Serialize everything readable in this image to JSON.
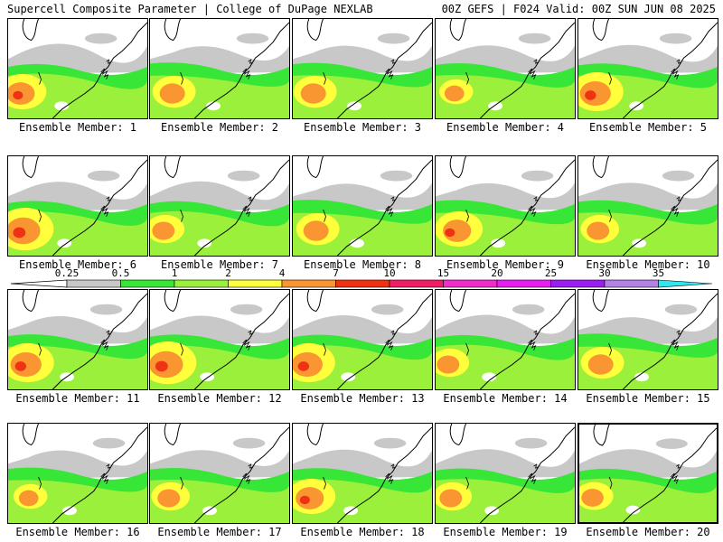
{
  "header": {
    "left": "Supercell Composite Parameter | College of DuPage NEXLAB",
    "right": "00Z GEFS | F024 Valid: 00Z SUN JUN 08 2025"
  },
  "legend": {
    "ticks": [
      "0.25",
      "0.5",
      "1",
      "2",
      "4",
      "7",
      "10",
      "15",
      "20",
      "25",
      "30",
      "35"
    ],
    "bins": [
      {
        "color": "#c8c8c8"
      },
      {
        "color": "#37e637"
      },
      {
        "color": "#9bf03c"
      },
      {
        "color": "#ffff3c"
      },
      {
        "color": "#fa9632"
      },
      {
        "color": "#f03214"
      },
      {
        "color": "#f01e64"
      },
      {
        "color": "#f02dc8"
      },
      {
        "color": "#e61ef0"
      },
      {
        "color": "#9b1ef0"
      },
      {
        "color": "#b482e6"
      },
      {
        "color": "#32e6f0"
      }
    ]
  },
  "panels": [
    {
      "label": "Ensemble Member: 1",
      "intensity": 0.8
    },
    {
      "label": "Ensemble Member: 2",
      "intensity": 0.7
    },
    {
      "label": "Ensemble Member: 3",
      "intensity": 0.7
    },
    {
      "label": "Ensemble Member: 4",
      "intensity": 0.5
    },
    {
      "label": "Ensemble Member: 5",
      "intensity": 0.9
    },
    {
      "label": "Ensemble Member: 6",
      "intensity": 1.0
    },
    {
      "label": "Ensemble Member: 7",
      "intensity": 0.6
    },
    {
      "label": "Ensemble Member: 8",
      "intensity": 0.7
    },
    {
      "label": "Ensemble Member: 9",
      "intensity": 0.8
    },
    {
      "label": "Ensemble Member: 10",
      "intensity": 0.6
    },
    {
      "label": "Ensemble Member: 11",
      "intensity": 0.9
    },
    {
      "label": "Ensemble Member: 12",
      "intensity": 1.0
    },
    {
      "label": "Ensemble Member: 13",
      "intensity": 0.9
    },
    {
      "label": "Ensemble Member: 14",
      "intensity": 0.6
    },
    {
      "label": "Ensemble Member: 15",
      "intensity": 0.7
    },
    {
      "label": "Ensemble Member: 16",
      "intensity": 0.5
    },
    {
      "label": "Ensemble Member: 17",
      "intensity": 0.6
    },
    {
      "label": "Ensemble Member: 18",
      "intensity": 0.8
    },
    {
      "label": "Ensemble Member: 19",
      "intensity": 0.6
    },
    {
      "label": "Ensemble Member: 20",
      "intensity": 0.6
    }
  ],
  "selected_panel": "Ensemble Member: 20"
}
